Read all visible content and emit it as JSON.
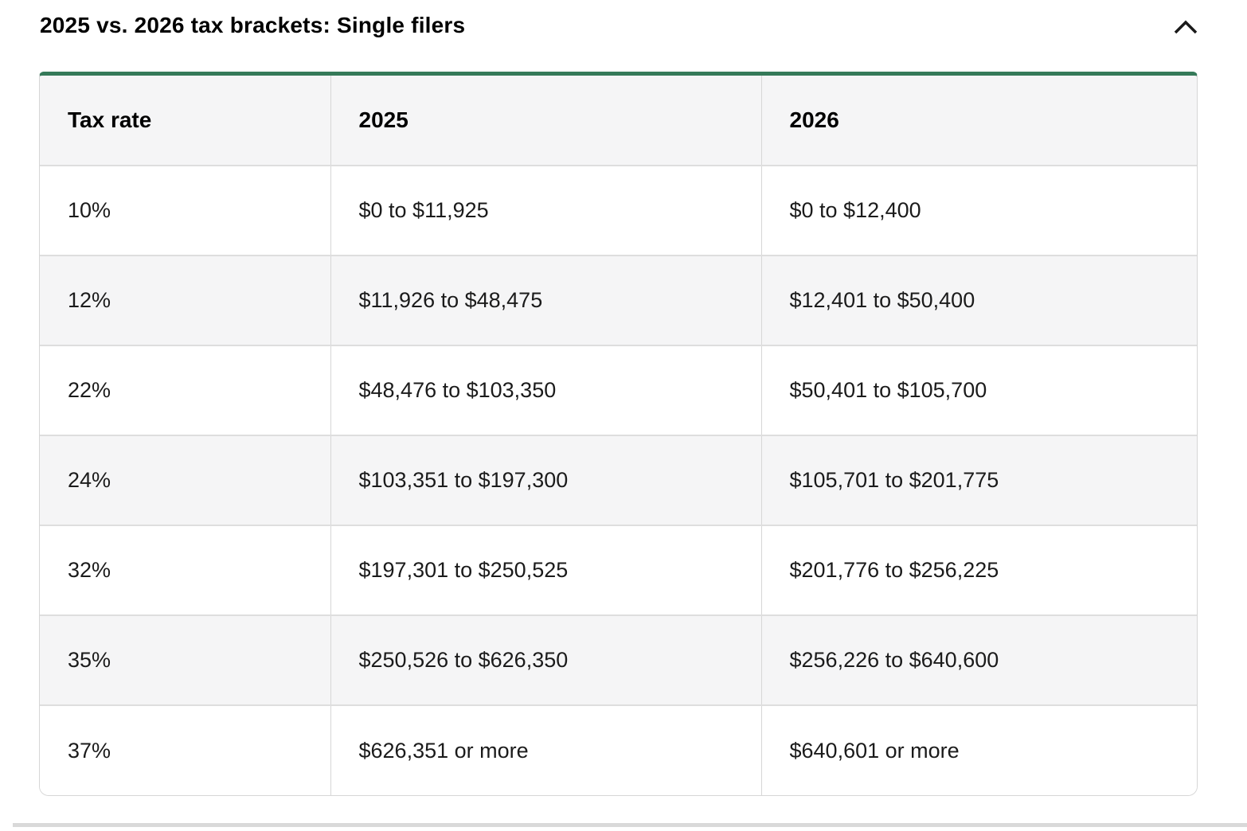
{
  "section": {
    "title": "2025 vs. 2026 tax brackets: Single filers",
    "collapse_icon": "chevron-up-icon"
  },
  "colors": {
    "accent_green": "#357a59",
    "header_row_bg": "#f5f5f6",
    "stripe_row_bg": "#f5f5f6",
    "border_gray": "#d6d6d6",
    "divider_gray": "#d9d9d9",
    "text": "#1b1b1b"
  },
  "table": {
    "columns": [
      "Tax rate",
      "2025",
      "2026"
    ],
    "rows": [
      {
        "rate": "10%",
        "y2025": "$0 to $11,925",
        "y2026": "$0 to $12,400"
      },
      {
        "rate": "12%",
        "y2025": "$11,926 to $48,475",
        "y2026": "$12,401 to $50,400"
      },
      {
        "rate": "22%",
        "y2025": "$48,476 to $103,350",
        "y2026": "$50,401 to $105,700"
      },
      {
        "rate": "24%",
        "y2025": "$103,351 to $197,300",
        "y2026": "$105,701 to $201,775"
      },
      {
        "rate": "32%",
        "y2025": "$197,301 to $250,525",
        "y2026": "$201,776 to $256,225"
      },
      {
        "rate": "35%",
        "y2025": "$250,526 to $626,350",
        "y2026": "$256,226 to $640,600"
      },
      {
        "rate": "37%",
        "y2025": "$626,351 or more",
        "y2026": "$640,601 or more"
      }
    ]
  }
}
